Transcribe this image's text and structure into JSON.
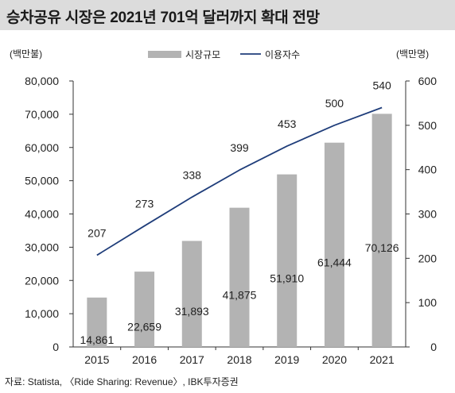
{
  "header": {
    "title": "승차공유 시장은 2021년 701억 달러까지 확대 전망"
  },
  "footer": {
    "source": "자료: Statista, 〈Ride Sharing: Revenue〉, IBK투자증권"
  },
  "chart_data": {
    "type": "bar",
    "categories": [
      "2015",
      "2016",
      "2017",
      "2018",
      "2019",
      "2020",
      "2021"
    ],
    "series": [
      {
        "name": "시장규모",
        "type": "bar",
        "axis": "left",
        "values": [
          14861,
          22659,
          31893,
          41875,
          51910,
          61444,
          70126
        ],
        "labels": [
          "14,861",
          "22,659",
          "31,893",
          "41,875",
          "51,910",
          "61,444",
          "70,126"
        ],
        "color": "#b3b3b3"
      },
      {
        "name": "이용자수",
        "type": "line",
        "axis": "right",
        "values": [
          207,
          273,
          338,
          399,
          453,
          500,
          540
        ],
        "labels": [
          "207",
          "273",
          "338",
          "399",
          "453",
          "500",
          "540"
        ],
        "color": "#1f3d7a"
      }
    ],
    "y_left": {
      "unit": "(백만불)",
      "range": [
        0,
        80000
      ],
      "ticks": [
        "0",
        "10,000",
        "20,000",
        "30,000",
        "40,000",
        "50,000",
        "60,000",
        "70,000",
        "80,000"
      ]
    },
    "y_right": {
      "unit": "(백만명)",
      "range": [
        0,
        600
      ],
      "ticks": [
        "0",
        "100",
        "200",
        "300",
        "400",
        "500",
        "600"
      ]
    },
    "grid": false,
    "legend": "top-center"
  }
}
